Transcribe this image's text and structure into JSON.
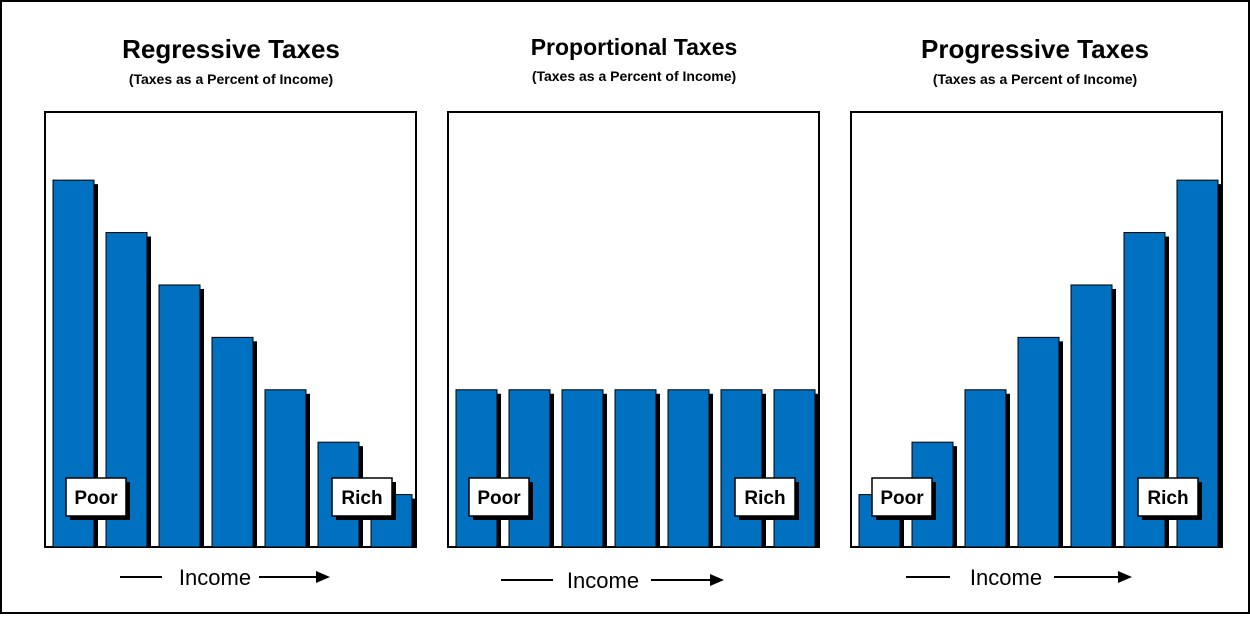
{
  "colors": {
    "bar": "#0070c0",
    "bar_shadow": "#000000",
    "frame": "#000000",
    "background": "#ffffff"
  },
  "chart_data": [
    {
      "type": "bar",
      "title": "Regressive Taxes",
      "subtitle": "(Taxes as a Percent of Income)",
      "xlabel": "Income",
      "ylabel": "",
      "categories": [
        "Poor",
        "",
        "",
        "",
        "",
        "",
        "Rich"
      ],
      "values": [
        7,
        6,
        5,
        4,
        3,
        2,
        1
      ],
      "ylim": [
        0,
        8.3
      ],
      "legend": "none",
      "grid": false
    },
    {
      "type": "bar",
      "title": "Proportional Taxes",
      "subtitle": "(Taxes as a Percent of Income)",
      "xlabel": "Income",
      "ylabel": "",
      "categories": [
        "Poor",
        "",
        "",
        "",
        "",
        "",
        "Rich"
      ],
      "values": [
        3,
        3,
        3,
        3,
        3,
        3,
        3
      ],
      "ylim": [
        0,
        8.3
      ],
      "legend": "none",
      "grid": false
    },
    {
      "type": "bar",
      "title": "Progressive Taxes",
      "subtitle": "(Taxes as a Percent of Income)",
      "xlabel": "Income",
      "ylabel": "",
      "categories": [
        "Poor",
        "",
        "",
        "",
        "",
        "",
        "Rich"
      ],
      "values": [
        1,
        2,
        3,
        4,
        5,
        6,
        7
      ],
      "ylim": [
        0,
        8.3
      ],
      "legend": "none",
      "grid": false
    }
  ]
}
